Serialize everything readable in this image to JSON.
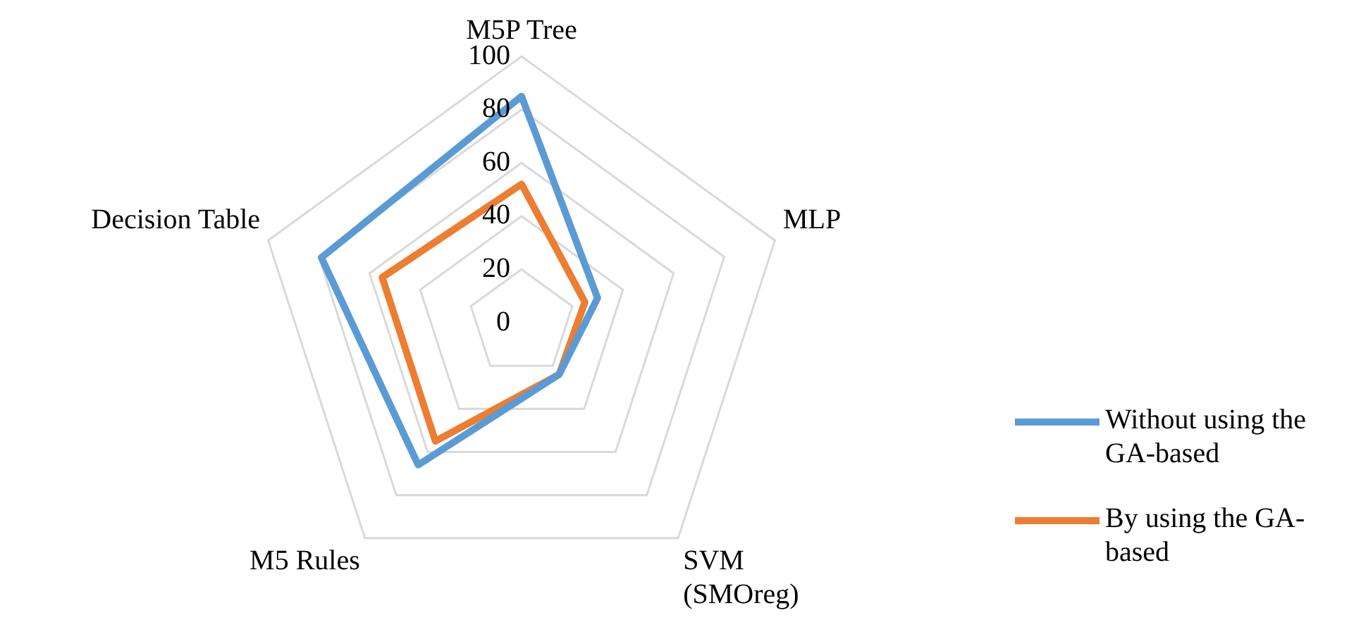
{
  "chart_data": {
    "type": "radar",
    "categories": [
      "M5P Tree",
      "MLP",
      "SVM\n(SMOreg)",
      "M5 Rules",
      "Decision Table"
    ],
    "series": [
      {
        "name": "Without using the GA-based",
        "color": "#5b9bd5",
        "values": [
          85,
          30,
          24,
          66,
          79
        ]
      },
      {
        "name": "By using the GA-based",
        "color": "#ed7d31",
        "values": [
          52,
          25,
          24,
          55,
          55
        ]
      }
    ],
    "ylim": [
      0,
      100
    ],
    "yticks": [
      0,
      20,
      40,
      60,
      80,
      100
    ],
    "grid": true,
    "legend": "right",
    "marker": "none"
  }
}
